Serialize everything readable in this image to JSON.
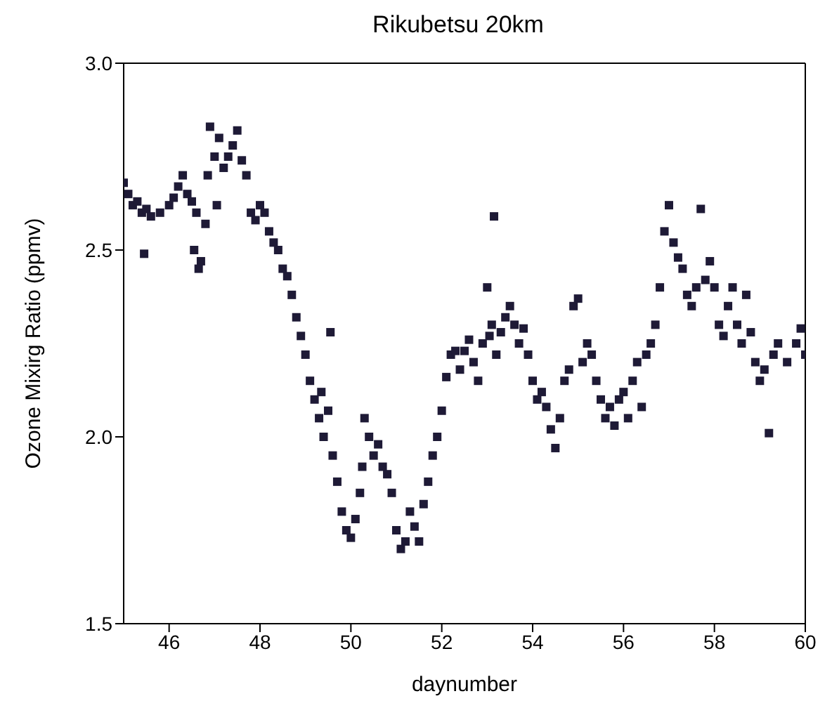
{
  "chart_data": {
    "type": "scatter",
    "title": "Rikubetsu 20km",
    "xlabel": "daynumber",
    "ylabel": "Ozone Mixirg Ratio (ppmv)",
    "xlim": [
      45,
      60
    ],
    "ylim": [
      1.5,
      3.0
    ],
    "xticks": [
      46,
      48,
      50,
      52,
      54,
      56,
      58,
      60
    ],
    "yticks": [
      1.5,
      {
        "value": 2,
        "label": "2.0"
      },
      2.5,
      {
        "value": 3,
        "label": "3.0"
      }
    ],
    "marker": "square",
    "series": [
      {
        "color": "#1e1a36",
        "x": [
          45.0,
          45.1,
          45.2,
          45.3,
          45.4,
          45.5,
          45.6,
          45.45,
          45.8,
          46.0,
          46.1,
          46.2,
          46.3,
          46.4,
          46.5,
          46.6,
          46.55,
          46.65,
          46.7,
          46.8,
          46.85,
          46.9,
          47.0,
          47.1,
          47.05,
          47.2,
          47.3,
          47.4,
          47.5,
          47.6,
          47.7,
          47.8,
          47.9,
          48.0,
          48.1,
          48.2,
          48.3,
          48.4,
          48.5,
          48.6,
          48.7,
          48.8,
          48.9,
          49.0,
          49.1,
          49.2,
          49.3,
          49.4,
          49.55,
          49.35,
          49.5,
          49.6,
          49.7,
          49.8,
          49.9,
          50.0,
          50.1,
          50.2,
          50.25,
          50.3,
          50.4,
          50.5,
          50.6,
          50.7,
          50.8,
          50.9,
          51.0,
          51.1,
          51.2,
          51.3,
          51.4,
          51.5,
          51.6,
          51.7,
          51.8,
          51.9,
          52.0,
          52.1,
          52.2,
          52.3,
          52.4,
          52.5,
          52.6,
          52.7,
          52.8,
          52.9,
          53.0,
          53.05,
          53.1,
          53.15,
          53.2,
          53.3,
          53.4,
          53.5,
          53.6,
          53.7,
          53.8,
          53.9,
          54.0,
          54.1,
          54.2,
          54.3,
          54.4,
          54.5,
          54.6,
          54.7,
          54.8,
          54.9,
          55.0,
          55.1,
          55.2,
          55.3,
          55.4,
          55.5,
          55.6,
          55.7,
          55.8,
          55.9,
          56.0,
          56.1,
          56.2,
          56.3,
          56.4,
          56.5,
          56.6,
          56.7,
          56.8,
          56.9,
          57.0,
          57.1,
          57.2,
          57.3,
          57.4,
          57.5,
          57.6,
          57.7,
          57.8,
          57.9,
          58.0,
          58.1,
          58.2,
          58.3,
          58.4,
          58.5,
          58.6,
          58.7,
          58.8,
          58.9,
          59.0,
          59.1,
          59.2,
          59.3,
          59.4,
          59.6,
          59.8,
          59.9,
          60.0
        ],
        "values": [
          2.68,
          2.65,
          2.62,
          2.63,
          2.6,
          2.61,
          2.59,
          2.49,
          2.6,
          2.62,
          2.64,
          2.67,
          2.7,
          2.65,
          2.63,
          2.6,
          2.5,
          2.45,
          2.47,
          2.57,
          2.7,
          2.83,
          2.75,
          2.8,
          2.62,
          2.72,
          2.75,
          2.78,
          2.82,
          2.74,
          2.7,
          2.6,
          2.58,
          2.62,
          2.6,
          2.55,
          2.52,
          2.5,
          2.45,
          2.43,
          2.38,
          2.32,
          2.27,
          2.22,
          2.15,
          2.1,
          2.05,
          2.0,
          2.28,
          2.12,
          2.07,
          1.95,
          1.88,
          1.8,
          1.75,
          1.73,
          1.78,
          1.85,
          1.92,
          2.05,
          2.0,
          1.95,
          1.98,
          1.92,
          1.9,
          1.85,
          1.75,
          1.7,
          1.72,
          1.8,
          1.76,
          1.72,
          1.82,
          1.88,
          1.95,
          2.0,
          2.07,
          2.16,
          2.22,
          2.23,
          2.18,
          2.23,
          2.26,
          2.2,
          2.15,
          2.25,
          2.4,
          2.27,
          2.3,
          2.59,
          2.22,
          2.28,
          2.32,
          2.35,
          2.3,
          2.25,
          2.29,
          2.22,
          2.15,
          2.1,
          2.12,
          2.08,
          2.02,
          1.97,
          2.05,
          2.15,
          2.18,
          2.35,
          2.37,
          2.2,
          2.25,
          2.22,
          2.15,
          2.1,
          2.05,
          2.08,
          2.03,
          2.1,
          2.12,
          2.05,
          2.15,
          2.2,
          2.08,
          2.22,
          2.25,
          2.3,
          2.4,
          2.55,
          2.62,
          2.52,
          2.48,
          2.45,
          2.38,
          2.35,
          2.4,
          2.61,
          2.42,
          2.47,
          2.4,
          2.3,
          2.27,
          2.35,
          2.4,
          2.3,
          2.25,
          2.38,
          2.28,
          2.2,
          2.15,
          2.18,
          2.01,
          2.22,
          2.25,
          2.2,
          2.25,
          2.29,
          2.22
        ]
      }
    ]
  }
}
